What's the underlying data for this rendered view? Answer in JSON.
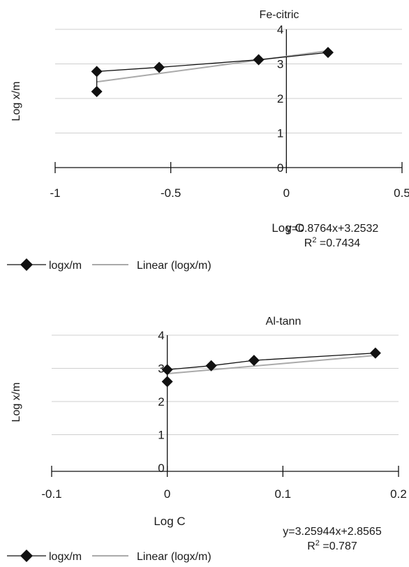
{
  "chart_data": [
    {
      "type": "line",
      "title": "Fe-citric",
      "xlabel": "Log C",
      "ylabel": "Log x/m",
      "xlim": [
        -1,
        0.5
      ],
      "ylim": [
        0,
        4
      ],
      "x_ticks": [
        "-1",
        "-0.5",
        "0",
        "0.5"
      ],
      "y_ticks": [
        "0",
        "1",
        "2",
        "3",
        "4"
      ],
      "grid": true,
      "legend_position": "bottom-left",
      "series": [
        {
          "name": "logx/m",
          "x": [
            -0.82,
            -0.82,
            -0.55,
            -0.12,
            0.18
          ],
          "y": [
            2.2,
            2.78,
            2.9,
            3.12,
            3.33
          ]
        },
        {
          "name": "Linear (logx/m)",
          "x": [
            -0.82,
            0.18
          ],
          "y": [
            2.48,
            3.38
          ]
        }
      ],
      "equation": "y=0.8764x+3.2532",
      "r2_label": "R",
      "r2_value": " =0.7434"
    },
    {
      "type": "line",
      "title": "Al-tann",
      "xlabel": "Log C",
      "ylabel": "Log x/m",
      "xlim": [
        -0.1,
        0.2
      ],
      "ylim": [
        0,
        4
      ],
      "x_ticks": [
        "-0.1",
        "0",
        "0.1",
        "0.2"
      ],
      "y_ticks": [
        "0",
        "1",
        "2",
        "3",
        "4"
      ],
      "grid": true,
      "legend_position": "bottom-left",
      "series": [
        {
          "name": "logx/m",
          "x": [
            0,
            0,
            0.038,
            0.075,
            0.18
          ],
          "y": [
            2.6,
            2.96,
            3.08,
            3.24,
            3.46
          ]
        },
        {
          "name": "Linear (logx/m)",
          "x": [
            0,
            0.18
          ],
          "y": [
            2.84,
            3.39
          ]
        }
      ],
      "equation": "y=3.25944x+2.8565",
      "r2_label": "R",
      "r2_value": " =0.787"
    }
  ],
  "colors": {
    "data_line": "#111111",
    "trend_line": "#aaaaaa",
    "grid": "#cfcfcf",
    "axis": "#111111"
  }
}
